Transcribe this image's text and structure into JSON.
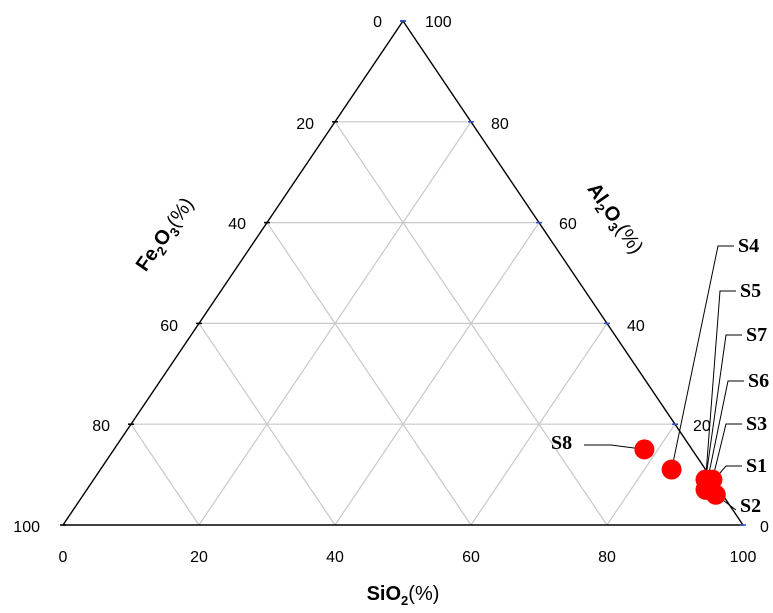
{
  "chart_data": {
    "type": "scatter",
    "subtype": "ternary",
    "axes": {
      "a": {
        "component": "SiO2",
        "title_main": "SiO",
        "title_sub": "2",
        "title_paren": "(%)",
        "ticks": [
          "0",
          "20",
          "40",
          "60",
          "80",
          "100"
        ]
      },
      "b": {
        "component": "Al2O3",
        "title_main": "Al",
        "title_sub1": "2",
        "title_mid": "O",
        "title_sub2": "3",
        "title_paren": "(%)",
        "ticks": [
          "100",
          "80",
          "60",
          "40",
          "20",
          "0"
        ]
      },
      "c": {
        "component": "Fe2O3",
        "title_main": "Fe",
        "title_sub1": "2",
        "title_mid": "O",
        "title_sub2": "3",
        "title_paren": "(%)",
        "ticks": [
          "0",
          "20",
          "40",
          "60",
          "80",
          "100"
        ]
      }
    },
    "grid": true,
    "marker_color": "#ff0000",
    "points": [
      {
        "label": "S1",
        "sio2": 91,
        "al2o3": 7,
        "fe2o3": 2
      },
      {
        "label": "S2",
        "sio2": 93,
        "al2o3": 6,
        "fe2o3": 1
      },
      {
        "label": "S3",
        "sio2": 91,
        "al2o3": 9,
        "fe2o3": 0
      },
      {
        "label": "S4",
        "sio2": 84,
        "al2o3": 11,
        "fe2o3": 5
      },
      {
        "label": "S5",
        "sio2": 90,
        "al2o3": 9,
        "fe2o3": 1
      },
      {
        "label": "S6",
        "sio2": 91,
        "al2o3": 7,
        "fe2o3": 2
      },
      {
        "label": "S7",
        "sio2": 90,
        "al2o3": 9,
        "fe2o3": 1
      },
      {
        "label": "S8",
        "sio2": 78,
        "al2o3": 15,
        "fe2o3": 7
      }
    ]
  }
}
